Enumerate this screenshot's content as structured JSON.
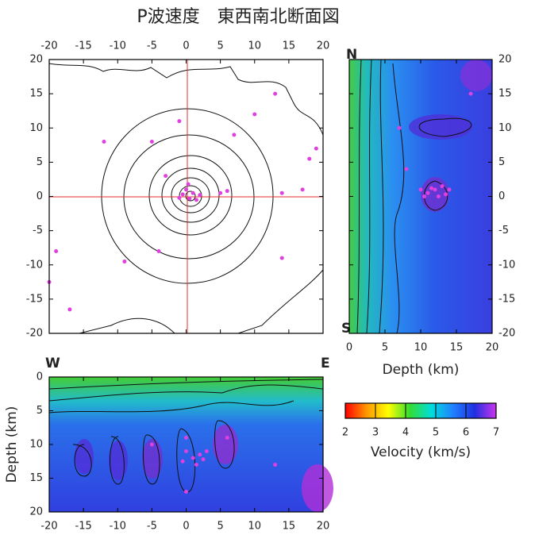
{
  "title": "P波速度　東西南北断面図",
  "chart_data": [
    {
      "type": "map",
      "xlim": [
        -20,
        20
      ],
      "ylim": [
        -20,
        20
      ],
      "xticks": [
        -20,
        -15,
        -10,
        -5,
        0,
        5,
        10,
        15,
        20
      ],
      "yticks": [
        -20,
        -15,
        -10,
        -5,
        0,
        5,
        10,
        15,
        20
      ],
      "events": {
        "color": "#e040e0",
        "x": [
          0,
          0.5,
          1,
          -0.5,
          1.5,
          2,
          -1,
          0.3,
          5,
          6,
          -1,
          -5,
          -3,
          7,
          -19,
          -20,
          -17,
          -9,
          -4,
          14,
          17,
          18,
          19,
          13,
          10,
          -12,
          14
        ],
        "y": [
          1,
          -0.3,
          0.5,
          0.3,
          -0.5,
          0.2,
          -0.2,
          1.8,
          0.5,
          0.8,
          11,
          8,
          3,
          9,
          -8,
          -12.5,
          -16.5,
          -9.5,
          -8,
          -9,
          1,
          5.5,
          7,
          15,
          12,
          8,
          0.5
        ]
      }
    },
    {
      "type": "section",
      "xlabel": "Depth (km)",
      "corner_labels": [
        "N",
        "S"
      ],
      "xlim": [
        0,
        20
      ],
      "ylim": [
        -20,
        20
      ],
      "xticks": [
        0,
        5,
        10,
        15,
        20
      ],
      "yticks": [
        -20,
        -15,
        -10,
        -5,
        0,
        5,
        10,
        15,
        20
      ],
      "events": {
        "color": "#e040e0",
        "x": [
          11,
          12,
          13,
          10,
          14,
          12.5,
          11.5,
          8,
          17,
          7,
          13.5,
          10.5
        ],
        "y": [
          0.5,
          1,
          1.5,
          1,
          1,
          0,
          1.2,
          4,
          15,
          10,
          0.3,
          0
        ]
      }
    },
    {
      "type": "section",
      "ylabel": "Depth (km)",
      "corner_labels": [
        "W",
        "E"
      ],
      "xlim": [
        -20,
        20
      ],
      "ylim": [
        0,
        20
      ],
      "y_inverted": true,
      "xticks": [
        -20,
        -15,
        -10,
        -5,
        0,
        5,
        10,
        15,
        20
      ],
      "yticks": [
        0,
        5,
        10,
        15,
        20
      ],
      "events": {
        "color": "#e040e0",
        "x": [
          0,
          1,
          2,
          1.5,
          -0.5,
          3,
          0,
          2.5,
          6,
          0,
          -5,
          13
        ],
        "y": [
          11,
          12,
          11.5,
          13,
          12.5,
          11,
          9,
          12.2,
          9,
          17,
          10,
          13
        ]
      }
    },
    {
      "type": "colorbar",
      "xlabel": "Velocity (km/s)",
      "xlim": [
        2,
        7
      ],
      "xticks": [
        2,
        3,
        4,
        5,
        6,
        7
      ],
      "colors": [
        "#ff0000",
        "#ff9900",
        "#ffff00",
        "#33dd33",
        "#00dddd",
        "#2080ff",
        "#2030e0",
        "#cc33ee"
      ]
    }
  ]
}
